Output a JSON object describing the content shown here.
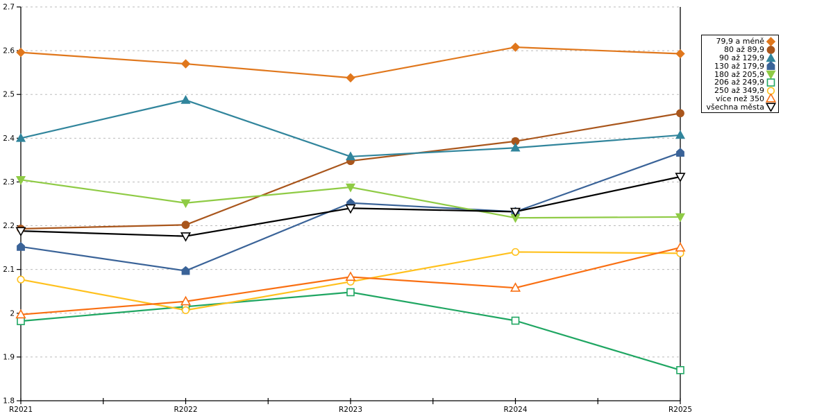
{
  "chart_data": {
    "type": "line",
    "title": "",
    "xlabel": "",
    "ylabel": "",
    "x": [
      "R2021",
      "R2022",
      "R2023",
      "R2024",
      "R2025"
    ],
    "ylim": [
      1.8,
      2.7
    ],
    "yticks": [
      1.8,
      1.9,
      2,
      2.1,
      2.2,
      2.3,
      2.4,
      2.5,
      2.6,
      2.7
    ],
    "grid": "horizontal-dashed",
    "legend_position": "right",
    "axis_color": "#000000",
    "grid_color": "#bbbbbb",
    "series": [
      {
        "name": "79,9 a méně",
        "color": "#E0771C",
        "marker": "diamond",
        "fill": true,
        "values": [
          2.596,
          2.57,
          2.538,
          2.608,
          2.593
        ]
      },
      {
        "name": "80 až 89,9",
        "color": "#A9561C",
        "marker": "circle",
        "fill": true,
        "values": [
          2.193,
          2.202,
          2.348,
          2.393,
          2.457
        ]
      },
      {
        "name": "90 až 129,9",
        "color": "#31859C",
        "marker": "triangle-up",
        "fill": true,
        "values": [
          2.4,
          2.487,
          2.358,
          2.378,
          2.407
        ]
      },
      {
        "name": "130 až 179,9",
        "color": "#3A6398",
        "marker": "pentagon",
        "fill": true,
        "values": [
          2.152,
          2.097,
          2.252,
          2.232,
          2.367
        ]
      },
      {
        "name": "180 až 205,9",
        "color": "#8FCB45",
        "marker": "triangle-down",
        "fill": true,
        "values": [
          2.305,
          2.252,
          2.288,
          2.218,
          2.22
        ]
      },
      {
        "name": "206 až 249,9",
        "color": "#1FA662",
        "marker": "square",
        "fill": false,
        "values": [
          1.982,
          2.015,
          2.048,
          1.983,
          1.87
        ]
      },
      {
        "name": "250 až 349,9",
        "color": "#FFC11E",
        "marker": "circle",
        "fill": false,
        "values": [
          2.077,
          2.007,
          2.072,
          2.14,
          2.137
        ]
      },
      {
        "name": "více než 350",
        "color": "#F96F12",
        "marker": "triangle-up",
        "fill": false,
        "values": [
          1.997,
          2.027,
          2.083,
          2.058,
          2.15
        ]
      },
      {
        "name": "všechna města",
        "color": "#000000",
        "marker": "triangle-down",
        "fill": false,
        "values": [
          2.188,
          2.176,
          2.24,
          2.232,
          2.312
        ]
      }
    ]
  }
}
